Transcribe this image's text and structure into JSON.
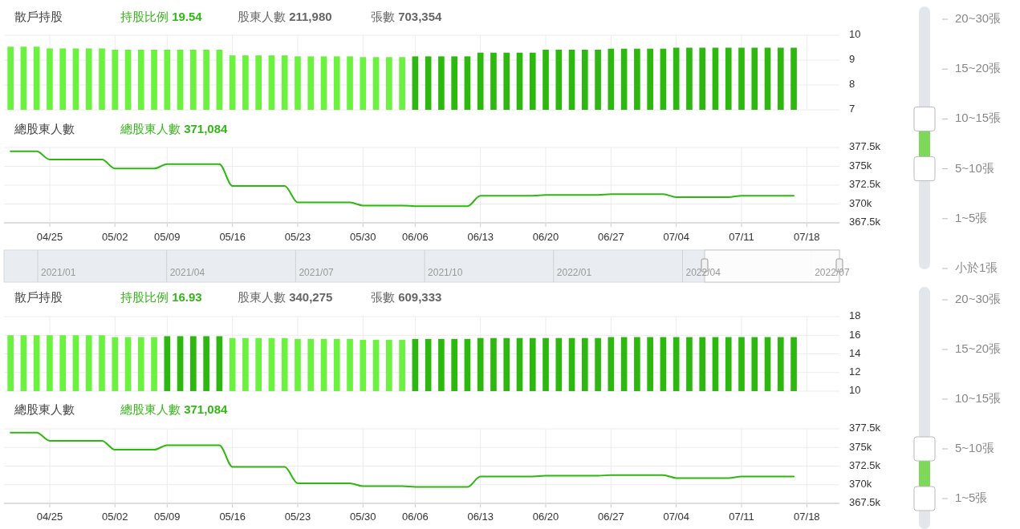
{
  "chart_data": [
    {
      "type": "bar",
      "title": "散戶持股",
      "annotations": [
        "持股比例 19.54",
        "股東人數 211,980",
        "張數 703,354"
      ],
      "categories": [
        null,
        null,
        null,
        null,
        null,
        null,
        null,
        null,
        null,
        null,
        null,
        null,
        null,
        null,
        null,
        null,
        null,
        null,
        null,
        null,
        null,
        null,
        null,
        null,
        null,
        null,
        null,
        null,
        null,
        null,
        null,
        null,
        null,
        null,
        null,
        null,
        null,
        null,
        null,
        null,
        null,
        null,
        null,
        null,
        null,
        null,
        null,
        null,
        null,
        null,
        null,
        null,
        null,
        null,
        null,
        null,
        null,
        null,
        null,
        null,
        null,
        null,
        null,
        null
      ],
      "values": [
        9.54,
        9.54,
        9.54,
        9.47,
        9.47,
        9.47,
        9.47,
        9.47,
        9.42,
        9.42,
        9.42,
        9.42,
        9.42,
        9.42,
        9.42,
        9.42,
        9.42,
        9.19,
        9.19,
        9.19,
        9.19,
        9.19,
        9.15,
        9.15,
        9.15,
        9.15,
        9.15,
        9.12,
        9.12,
        9.12,
        9.12,
        9.15,
        9.15,
        9.15,
        9.15,
        9.15,
        9.3,
        9.3,
        9.3,
        9.3,
        9.3,
        9.42,
        9.42,
        9.42,
        9.42,
        9.42,
        9.46,
        9.46,
        9.46,
        9.46,
        9.46,
        9.5,
        9.5,
        9.5,
        9.5,
        9.5,
        9.5,
        9.5,
        9.5,
        9.5,
        9.5,
        null,
        null,
        null
      ],
      "colors": [
        "#6af23f",
        "#6af23f",
        "#6af23f",
        "#6af23f",
        "#6af23f",
        "#6af23f",
        "#6af23f",
        "#6af23f",
        "#6af23f",
        "#6af23f",
        "#6af23f",
        "#6af23f",
        "#6af23f",
        "#6af23f",
        "#6af23f",
        "#6af23f",
        "#6af23f",
        "#6af23f",
        "#6af23f",
        "#6af23f",
        "#6af23f",
        "#6af23f",
        "#6af23f",
        "#6af23f",
        "#6af23f",
        "#6af23f",
        "#6af23f",
        "#6af23f",
        "#6af23f",
        "#6af23f",
        "#6af23f",
        "#2db80f",
        "#2db80f",
        "#2db80f",
        "#2db80f",
        "#2db80f",
        "#2db80f",
        "#2db80f",
        "#2db80f",
        "#2db80f",
        "#2db80f",
        "#2db80f",
        "#2db80f",
        "#2db80f",
        "#2db80f",
        "#2db80f",
        "#2db80f",
        "#2db80f",
        "#2db80f",
        "#2db80f",
        "#2db80f",
        "#2db80f",
        "#2db80f",
        "#2db80f",
        "#2db80f",
        "#2db80f",
        "#2db80f",
        "#2db80f",
        "#2db80f",
        "#2db80f",
        "#2db80f",
        null,
        null,
        null
      ],
      "ylim": [
        7,
        10
      ],
      "yticks": [
        7,
        8,
        9,
        10
      ],
      "grid": true,
      "tick_labels": "y"
    },
    {
      "type": "other",
      "categories": [
        "20~30張",
        "15~20張",
        "10~15張",
        "5~10張",
        "1~5張",
        "小於1張"
      ]
    },
    {
      "type": "line",
      "title": "總股東人數",
      "annotations": [
        "總股東人數 371,084"
      ],
      "categories": [
        null,
        null,
        null,
        "04/25",
        null,
        null,
        null,
        null,
        "05/02",
        null,
        null,
        null,
        "05/09",
        null,
        null,
        null,
        null,
        "05/16",
        null,
        null,
        null,
        null,
        "05/23",
        null,
        null,
        null,
        null,
        "05/30",
        null,
        null,
        null,
        "06/06",
        null,
        null,
        null,
        null,
        "06/13",
        null,
        null,
        null,
        null,
        "06/20",
        null,
        null,
        null,
        null,
        "06/27",
        null,
        null,
        null,
        null,
        "07/04",
        null,
        null,
        null,
        null,
        "07/11",
        null,
        null,
        null,
        null,
        "07/18",
        null,
        null
      ],
      "values": [
        377000,
        377000,
        377000,
        375900,
        375900,
        375900,
        375900,
        375900,
        374700,
        374700,
        374700,
        374700,
        375300,
        375300,
        375300,
        375300,
        375300,
        372400,
        372400,
        372400,
        372400,
        372400,
        370200,
        370200,
        370200,
        370200,
        370200,
        369800,
        369800,
        369800,
        369800,
        369700,
        369700,
        369700,
        369700,
        369700,
        371100,
        371100,
        371100,
        371100,
        371100,
        371200,
        371200,
        371200,
        371200,
        371200,
        371300,
        371300,
        371300,
        371300,
        371300,
        370900,
        370900,
        370900,
        370900,
        370900,
        371100,
        371100,
        371100,
        371100,
        371100,
        null,
        null,
        null
      ],
      "color": "#2db80f",
      "ylim": [
        367500,
        377500
      ],
      "yticks": [
        {
          "value": 367500,
          "label": "367.5k"
        },
        {
          "value": 370000,
          "label": "370k"
        },
        {
          "value": 372500,
          "label": "372.5k"
        },
        {
          "value": 375000,
          "label": "375k"
        },
        {
          "value": 377500,
          "label": "377.5k"
        }
      ],
      "grid": true
    },
    {
      "type": "other",
      "annotations": [
        "2021/01",
        "2021/04",
        "2021/07",
        "2021/10",
        "2022/01",
        "2022/04",
        "2022/07"
      ]
    },
    {
      "type": "bar",
      "title": "散戶持股",
      "annotations": [
        "持股比例 16.93",
        "股東人數 340,275",
        "張數 609,333"
      ],
      "categories": [
        null,
        null,
        null,
        null,
        null,
        null,
        null,
        null,
        null,
        null,
        null,
        null,
        null,
        null,
        null,
        null,
        null,
        null,
        null,
        null,
        null,
        null,
        null,
        null,
        null,
        null,
        null,
        null,
        null,
        null,
        null,
        null,
        null,
        null,
        null,
        null,
        null,
        null,
        null,
        null,
        null,
        null,
        null,
        null,
        null,
        null,
        null,
        null,
        null,
        null,
        null,
        null,
        null,
        null,
        null,
        null,
        null,
        null,
        null,
        null,
        null,
        null,
        null,
        null
      ],
      "values": [
        16.0,
        16.0,
        16.0,
        16.0,
        16.0,
        16.0,
        16.0,
        16.0,
        15.8,
        15.8,
        15.8,
        15.8,
        15.9,
        15.9,
        15.9,
        15.9,
        15.9,
        15.7,
        15.7,
        15.7,
        15.7,
        15.7,
        15.6,
        15.6,
        15.6,
        15.6,
        15.6,
        15.5,
        15.5,
        15.5,
        15.5,
        15.6,
        15.6,
        15.6,
        15.6,
        15.6,
        15.7,
        15.7,
        15.7,
        15.7,
        15.7,
        15.7,
        15.7,
        15.7,
        15.7,
        15.7,
        15.8,
        15.8,
        15.8,
        15.8,
        15.8,
        15.8,
        15.8,
        15.8,
        15.8,
        15.8,
        15.8,
        15.8,
        15.8,
        15.8,
        15.8,
        null,
        null,
        null
      ],
      "colors": [
        "#6af23f",
        "#6af23f",
        "#6af23f",
        "#6af23f",
        "#6af23f",
        "#6af23f",
        "#6af23f",
        "#6af23f",
        "#6af23f",
        "#6af23f",
        "#6af23f",
        "#6af23f",
        "#2db80f",
        "#2db80f",
        "#2db80f",
        "#2db80f",
        "#2db80f",
        "#6af23f",
        "#6af23f",
        "#6af23f",
        "#6af23f",
        "#6af23f",
        "#6af23f",
        "#6af23f",
        "#6af23f",
        "#6af23f",
        "#6af23f",
        "#6af23f",
        "#6af23f",
        "#6af23f",
        "#6af23f",
        "#2db80f",
        "#2db80f",
        "#2db80f",
        "#2db80f",
        "#2db80f",
        "#2db80f",
        "#2db80f",
        "#2db80f",
        "#2db80f",
        "#2db80f",
        "#2db80f",
        "#2db80f",
        "#2db80f",
        "#2db80f",
        "#2db80f",
        "#2db80f",
        "#2db80f",
        "#2db80f",
        "#2db80f",
        "#2db80f",
        "#2db80f",
        "#2db80f",
        "#2db80f",
        "#2db80f",
        "#2db80f",
        "#2db80f",
        "#2db80f",
        "#2db80f",
        "#2db80f",
        "#2db80f",
        null,
        null,
        null
      ],
      "ylim": [
        10,
        18
      ],
      "yticks": [
        10,
        12,
        14,
        16,
        18
      ],
      "grid": true,
      "tick_labels": "y"
    },
    {
      "type": "other",
      "categories": [
        "20~30張",
        "15~20張",
        "10~15張",
        "5~10張",
        "1~5張"
      ]
    },
    {
      "type": "line",
      "title": "總股東人數",
      "annotations": [
        "總股東人數 371,084"
      ],
      "categories": [
        null,
        null,
        null,
        "04/25",
        null,
        null,
        null,
        null,
        "05/02",
        null,
        null,
        null,
        "05/09",
        null,
        null,
        null,
        null,
        "05/16",
        null,
        null,
        null,
        null,
        "05/23",
        null,
        null,
        null,
        null,
        "05/30",
        null,
        null,
        null,
        "06/06",
        null,
        null,
        null,
        null,
        "06/13",
        null,
        null,
        null,
        null,
        "06/20",
        null,
        null,
        null,
        null,
        "06/27",
        null,
        null,
        null,
        null,
        "07/04",
        null,
        null,
        null,
        null,
        "07/11",
        null,
        null,
        null,
        null,
        "07/18",
        null,
        null
      ],
      "values": [
        377000,
        377000,
        377000,
        375900,
        375900,
        375900,
        375900,
        375900,
        374700,
        374700,
        374700,
        374700,
        375300,
        375300,
        375300,
        375300,
        375300,
        372400,
        372400,
        372400,
        372400,
        372400,
        370200,
        370200,
        370200,
        370200,
        370200,
        369800,
        369800,
        369800,
        369800,
        369700,
        369700,
        369700,
        369700,
        369700,
        371100,
        371100,
        371100,
        371100,
        371100,
        371200,
        371200,
        371200,
        371200,
        371200,
        371300,
        371300,
        371300,
        371300,
        371300,
        370900,
        370900,
        370900,
        370900,
        370900,
        371100,
        371100,
        371100,
        371100,
        371100,
        null,
        null,
        null
      ],
      "color": "#2db80f",
      "ylim": [
        367500,
        377500
      ],
      "yticks": [
        {
          "value": 367500,
          "label": "367.5k"
        },
        {
          "value": 370000,
          "label": "370k"
        },
        {
          "value": 372500,
          "label": "372.5k"
        },
        {
          "value": 375000,
          "label": "375k"
        },
        {
          "value": 377500,
          "label": "377.5k"
        }
      ],
      "grid": true
    }
  ]
}
